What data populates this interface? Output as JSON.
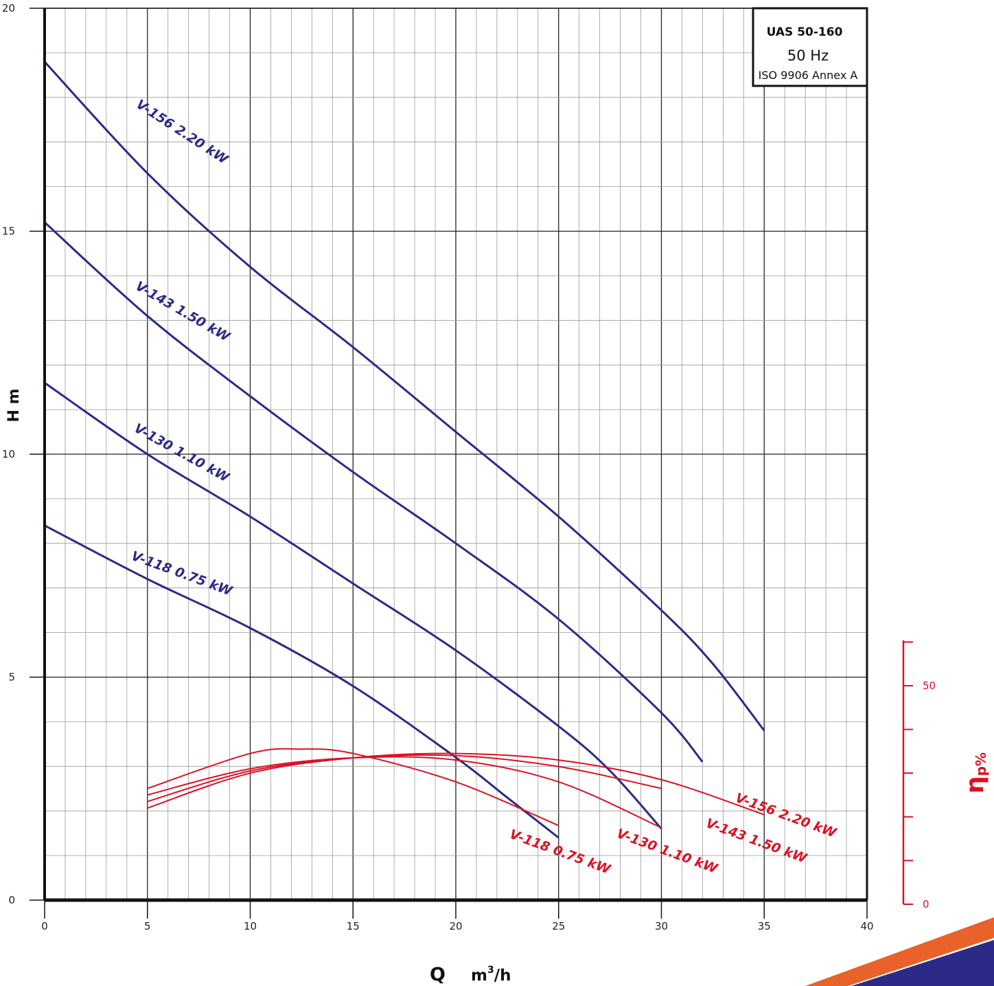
{
  "chart_data": {
    "type": "line",
    "title": "UAS 50-160",
    "subtitle": "50 Hz",
    "standard": "ISO  9906 Annex A",
    "xlabel": "Q",
    "xunit_base": "m",
    "xunit_sup": "3",
    "xunit_tail": "/h",
    "ylabel": "H m",
    "y2label_main": "η",
    "y2label_sub": "p%",
    "xlim": [
      0,
      40
    ],
    "ylim": [
      0,
      20
    ],
    "y2lim": [
      0,
      60
    ],
    "x_ticks": [
      "0",
      "5",
      "10",
      "15",
      "20",
      "25",
      "30",
      "35",
      "40"
    ],
    "y_ticks": [
      "0",
      "5",
      "10",
      "15",
      "20"
    ],
    "y2_ticks": [
      "0",
      "50"
    ],
    "grid": true,
    "colors": {
      "head": "#2b2a86",
      "efficiency": "#dd1122"
    },
    "head_curves": [
      {
        "name": "V-156  2.20 kW",
        "x": [
          0,
          5,
          10,
          15,
          20,
          25,
          30,
          32.5,
          35
        ],
        "y": [
          18.8,
          16.3,
          14.2,
          12.4,
          10.5,
          8.6,
          6.5,
          5.3,
          3.8
        ]
      },
      {
        "name": "V-143  1.50 kW",
        "x": [
          0,
          5,
          10,
          15,
          20,
          25,
          30,
          32
        ],
        "y": [
          15.2,
          13.1,
          11.3,
          9.6,
          8.0,
          6.3,
          4.2,
          3.1
        ]
      },
      {
        "name": "V-130  1.10 kW",
        "x": [
          0,
          5,
          10,
          15,
          20,
          25,
          27.5,
          30
        ],
        "y": [
          11.6,
          10.0,
          8.6,
          7.1,
          5.6,
          3.9,
          2.9,
          1.6
        ]
      },
      {
        "name": "V-118  0.75 kW",
        "x": [
          0,
          5,
          10,
          15,
          20,
          22.5,
          25
        ],
        "y": [
          8.4,
          7.2,
          6.1,
          4.8,
          3.2,
          2.3,
          1.4
        ]
      }
    ],
    "efficiency_curves": [
      {
        "name": "V-156  2.20 kW",
        "x": [
          5,
          10,
          15,
          20,
          25,
          30,
          35
        ],
        "y": [
          22.0,
          30.0,
          33.5,
          34.5,
          33.0,
          28.5,
          20.5
        ]
      },
      {
        "name": "V-143  1.50 kW",
        "x": [
          5,
          10,
          15,
          20,
          25,
          30
        ],
        "y": [
          23.5,
          30.5,
          33.5,
          34.0,
          31.5,
          26.5
        ]
      },
      {
        "name": "V-130  1.10 kW",
        "x": [
          5,
          10,
          15,
          20,
          25,
          30
        ],
        "y": [
          25.0,
          31.0,
          33.5,
          33.0,
          28.0,
          17.5
        ]
      },
      {
        "name": "V-118  0.75 kW",
        "x": [
          5,
          10,
          12.5,
          15,
          20,
          25
        ],
        "y": [
          26.5,
          34.5,
          35.5,
          34.5,
          28.0,
          18.0
        ]
      }
    ]
  }
}
